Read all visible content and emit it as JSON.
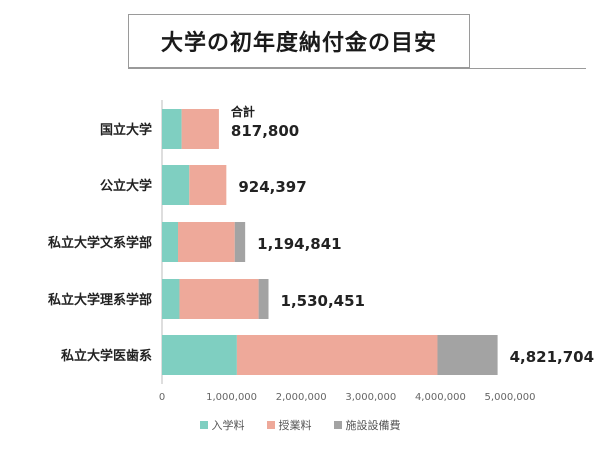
{
  "title": "大学の初年度納付金の目安",
  "colors": {
    "nyugaku": "#7fcfc1",
    "jugyo": "#eea99a",
    "shisetsu": "#a3a3a3",
    "axis": "#bdbdbd",
    "text": "#222222",
    "tick": "#666666"
  },
  "chart_data": {
    "type": "bar",
    "orientation": "horizontal",
    "stacked": true,
    "categories": [
      "国立大学",
      "公立大学",
      "私立大学文系学部",
      "私立大学理系学部",
      "私立大学医歯系"
    ],
    "series": [
      {
        "name": "入学料",
        "values": [
          282000,
          392000,
          230000,
          251000,
          1076000
        ]
      },
      {
        "name": "授業料",
        "values": [
          535800,
          532397,
          815000,
          1137000,
          2882000
        ]
      },
      {
        "name": "施設設備費",
        "values": [
          0,
          0,
          149841,
          142451,
          863704
        ]
      }
    ],
    "totals_labels": [
      "817,800",
      "924,397",
      "1,194,841",
      "1,530,451",
      "4,821,704"
    ],
    "total_caption": "合計",
    "xlim": [
      0,
      5000000
    ],
    "x_ticks": [
      0,
      1000000,
      2000000,
      3000000,
      4000000,
      5000000
    ],
    "x_tick_labels": [
      "0",
      "1,000,000",
      "2,000,000",
      "3,000,000",
      "4,000,000",
      "5,000,000"
    ],
    "legend_position": "bottom",
    "grid": false
  }
}
